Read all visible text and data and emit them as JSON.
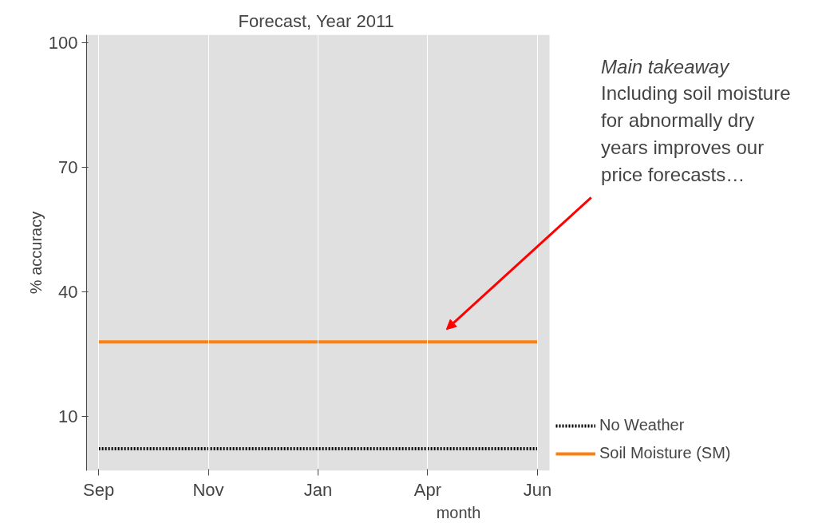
{
  "chart_data": {
    "type": "line",
    "title": "Forecast, Year 2011",
    "xlabel": "month",
    "ylabel": "% accuracy",
    "categories": [
      "Sep",
      "Nov",
      "Jan",
      "Apr",
      "Jun"
    ],
    "ylim": [
      -3,
      102
    ],
    "yticks": [
      10,
      40,
      70,
      100
    ],
    "grid": "x",
    "legend": "right",
    "marker": "none",
    "series": [
      {
        "name": "No Weather",
        "color": "#000000",
        "line_style": "dotted",
        "values": [
          2.3,
          2.3,
          2.3,
          2.3,
          2.3
        ]
      },
      {
        "name": "Soil Moisture (SM)",
        "color": "#ff7f0e",
        "line_style": "solid",
        "values": [
          28,
          28,
          28,
          28,
          28
        ]
      }
    ],
    "annotations": [
      "Main takeaway",
      "Including soil moisture\nfor abnormally dry\nyears improves our\nprice forecasts…"
    ]
  }
}
